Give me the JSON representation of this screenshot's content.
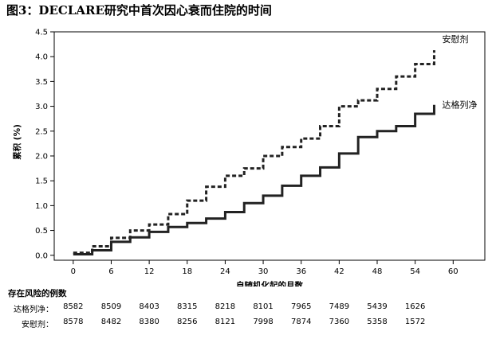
{
  "figure_title": "图3：DECLARE研究中首次因心衰而住院的时间",
  "chart_data": {
    "type": "line",
    "title": "",
    "xlabel": "自随机化起的月数",
    "ylabel": "累积 (%)",
    "xlim": [
      -3,
      65
    ],
    "ylim": [
      -0.1,
      4.5
    ],
    "xticks": [
      0,
      6,
      12,
      18,
      24,
      30,
      36,
      42,
      48,
      54,
      60
    ],
    "yticks": [
      "0.0",
      "0.5",
      "1.0",
      "1.5",
      "2.0",
      "2.5",
      "3.0",
      "3.5",
      "4.0",
      "4.5"
    ],
    "grid": false,
    "legend": "labels at line ends (right)",
    "series": [
      {
        "name": "安慰剂",
        "style": "dashed",
        "color": "#222222",
        "x": [
          0,
          3,
          6,
          9,
          12,
          15,
          18,
          21,
          24,
          27,
          30,
          33,
          36,
          39,
          42,
          45,
          48,
          51,
          54,
          57
        ],
        "y": [
          0.05,
          0.18,
          0.35,
          0.5,
          0.62,
          0.83,
          1.1,
          1.38,
          1.6,
          1.75,
          2.0,
          2.18,
          2.35,
          2.6,
          3.0,
          3.12,
          3.35,
          3.6,
          3.85,
          4.13
        ]
      },
      {
        "name": "达格列净",
        "style": "solid",
        "color": "#222222",
        "x": [
          0,
          3,
          6,
          9,
          12,
          15,
          18,
          21,
          24,
          27,
          30,
          33,
          36,
          39,
          42,
          45,
          48,
          51,
          54,
          57
        ],
        "y": [
          0.02,
          0.1,
          0.27,
          0.36,
          0.47,
          0.57,
          0.65,
          0.74,
          0.87,
          1.05,
          1.2,
          1.4,
          1.6,
          1.77,
          2.05,
          2.38,
          2.5,
          2.6,
          2.85,
          3.03
        ]
      }
    ]
  },
  "risk_table": {
    "header": "存在风险的例数",
    "rows": [
      {
        "label": "达格列净：",
        "values": [
          "8582",
          "8509",
          "8403",
          "8315",
          "8218",
          "8101",
          "7965",
          "7489",
          "5439",
          "1626"
        ]
      },
      {
        "label": "安慰剂：",
        "values": [
          "8578",
          "8482",
          "8380",
          "8256",
          "8121",
          "7998",
          "7874",
          "7360",
          "5358",
          "1572"
        ]
      }
    ]
  }
}
